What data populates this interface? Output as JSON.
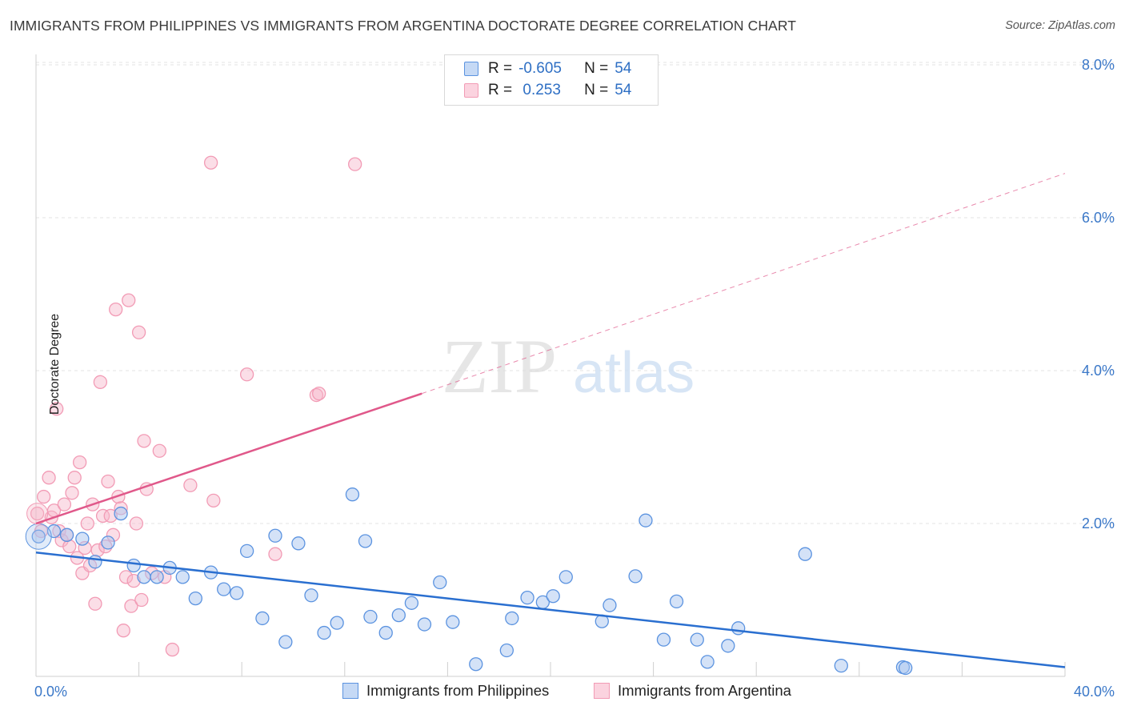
{
  "header": {
    "title": "IMMIGRANTS FROM PHILIPPINES VS IMMIGRANTS FROM ARGENTINA DOCTORATE DEGREE CORRELATION CHART",
    "source": "Source: ZipAtlas.com"
  },
  "watermark": {
    "part1": "ZIP",
    "part2": "atlas"
  },
  "legend": {
    "rows": [
      {
        "r_label": "R = ",
        "r_value": "-0.605",
        "n_label": "N = ",
        "n_value": "54"
      },
      {
        "r_label": "R = ",
        "r_value": " 0.253",
        "n_label": "N = ",
        "n_value": "54"
      }
    ]
  },
  "chart_data": {
    "type": "scatter",
    "title": "IMMIGRANTS FROM PHILIPPINES VS IMMIGRANTS FROM ARGENTINA DOCTORATE DEGREE CORRELATION CHART",
    "xlabel": "",
    "ylabel": "Doctorate Degree",
    "xlim": [
      0,
      40
    ],
    "ylim": [
      0,
      8.2
    ],
    "x_tick_labels": [
      "0.0%",
      "40.0%"
    ],
    "y_ticks": [
      2,
      4,
      6,
      8
    ],
    "y_tick_labels": [
      "2.0%",
      "4.0%",
      "6.0%",
      "8.0%"
    ],
    "grid": true,
    "legend_position": "bottom",
    "colors": {
      "philippines": "#5b93e0",
      "philippines_line": "#2a6fd0",
      "argentina": "#f29bb5",
      "argentina_line": "#e0588a",
      "tick_label": "#3b78c8"
    },
    "series": [
      {
        "name": "Immigrants from Philippines",
        "color": "#5b93e0",
        "trend": {
          "x": [
            0,
            40
          ],
          "y": [
            1.62,
            0.12
          ]
        },
        "points": [
          {
            "x": 0.1,
            "y": 1.83
          },
          {
            "x": 0.7,
            "y": 1.9
          },
          {
            "x": 1.2,
            "y": 1.85
          },
          {
            "x": 1.8,
            "y": 1.8
          },
          {
            "x": 2.3,
            "y": 1.5
          },
          {
            "x": 2.8,
            "y": 1.75
          },
          {
            "x": 3.3,
            "y": 2.13
          },
          {
            "x": 3.8,
            "y": 1.45
          },
          {
            "x": 4.2,
            "y": 1.3
          },
          {
            "x": 4.7,
            "y": 1.3
          },
          {
            "x": 5.2,
            "y": 1.42
          },
          {
            "x": 5.7,
            "y": 1.3
          },
          {
            "x": 6.2,
            "y": 1.02
          },
          {
            "x": 6.8,
            "y": 1.36
          },
          {
            "x": 7.3,
            "y": 1.14
          },
          {
            "x": 7.8,
            "y": 1.09
          },
          {
            "x": 8.2,
            "y": 1.64
          },
          {
            "x": 8.8,
            "y": 0.76
          },
          {
            "x": 9.3,
            "y": 1.84
          },
          {
            "x": 9.7,
            "y": 0.45
          },
          {
            "x": 10.2,
            "y": 1.74
          },
          {
            "x": 10.7,
            "y": 1.06
          },
          {
            "x": 11.2,
            "y": 0.57
          },
          {
            "x": 11.7,
            "y": 0.7
          },
          {
            "x": 12.3,
            "y": 2.38
          },
          {
            "x": 12.8,
            "y": 1.77
          },
          {
            "x": 13.0,
            "y": 0.78
          },
          {
            "x": 13.6,
            "y": 0.57
          },
          {
            "x": 14.1,
            "y": 0.8
          },
          {
            "x": 14.6,
            "y": 0.96
          },
          {
            "x": 15.1,
            "y": 0.68
          },
          {
            "x": 15.7,
            "y": 1.23
          },
          {
            "x": 16.2,
            "y": 0.71
          },
          {
            "x": 17.1,
            "y": 0.16
          },
          {
            "x": 18.3,
            "y": 0.34
          },
          {
            "x": 18.5,
            "y": 0.76
          },
          {
            "x": 19.1,
            "y": 1.03
          },
          {
            "x": 19.7,
            "y": 0.97
          },
          {
            "x": 20.1,
            "y": 1.05
          },
          {
            "x": 20.6,
            "y": 1.3
          },
          {
            "x": 22.0,
            "y": 0.72
          },
          {
            "x": 22.3,
            "y": 0.93
          },
          {
            "x": 23.3,
            "y": 1.31
          },
          {
            "x": 23.7,
            "y": 2.04
          },
          {
            "x": 24.4,
            "y": 0.48
          },
          {
            "x": 24.9,
            "y": 0.98
          },
          {
            "x": 25.7,
            "y": 0.48
          },
          {
            "x": 26.1,
            "y": 0.19
          },
          {
            "x": 26.9,
            "y": 0.4
          },
          {
            "x": 27.3,
            "y": 0.63
          },
          {
            "x": 29.9,
            "y": 1.6
          },
          {
            "x": 31.3,
            "y": 0.14
          },
          {
            "x": 33.7,
            "y": 0.12
          },
          {
            "x": 33.8,
            "y": 0.11
          }
        ]
      },
      {
        "name": "Immigrants from Argentina",
        "color": "#f29bb5",
        "trend": {
          "x": [
            0,
            15
          ],
          "y": [
            2.0,
            3.7
          ]
        },
        "trend_extension": {
          "x": [
            15,
            40
          ],
          "y": [
            3.7,
            6.58
          ]
        },
        "points": [
          {
            "x": 0.05,
            "y": 2.13
          },
          {
            "x": 0.2,
            "y": 1.9
          },
          {
            "x": 0.3,
            "y": 2.35
          },
          {
            "x": 0.5,
            "y": 2.6
          },
          {
            "x": 0.6,
            "y": 2.08
          },
          {
            "x": 0.7,
            "y": 2.17
          },
          {
            "x": 0.8,
            "y": 3.5
          },
          {
            "x": 0.9,
            "y": 1.9
          },
          {
            "x": 1.0,
            "y": 1.78
          },
          {
            "x": 1.1,
            "y": 2.25
          },
          {
            "x": 1.2,
            "y": 1.85
          },
          {
            "x": 1.3,
            "y": 1.7
          },
          {
            "x": 1.4,
            "y": 2.4
          },
          {
            "x": 1.5,
            "y": 2.6
          },
          {
            "x": 1.6,
            "y": 1.55
          },
          {
            "x": 1.7,
            "y": 2.8
          },
          {
            "x": 1.8,
            "y": 1.35
          },
          {
            "x": 1.9,
            "y": 1.68
          },
          {
            "x": 2.0,
            "y": 2.0
          },
          {
            "x": 2.1,
            "y": 1.45
          },
          {
            "x": 2.2,
            "y": 2.25
          },
          {
            "x": 2.3,
            "y": 0.95
          },
          {
            "x": 2.4,
            "y": 1.65
          },
          {
            "x": 2.5,
            "y": 3.85
          },
          {
            "x": 2.6,
            "y": 2.1
          },
          {
            "x": 2.7,
            "y": 1.7
          },
          {
            "x": 2.8,
            "y": 2.55
          },
          {
            "x": 2.9,
            "y": 2.1
          },
          {
            "x": 3.0,
            "y": 1.85
          },
          {
            "x": 3.1,
            "y": 4.8
          },
          {
            "x": 3.2,
            "y": 2.35
          },
          {
            "x": 3.3,
            "y": 2.2
          },
          {
            "x": 3.4,
            "y": 0.6
          },
          {
            "x": 3.5,
            "y": 1.3
          },
          {
            "x": 3.6,
            "y": 4.92
          },
          {
            "x": 3.7,
            "y": 0.92
          },
          {
            "x": 3.8,
            "y": 1.25
          },
          {
            "x": 3.9,
            "y": 2.0
          },
          {
            "x": 4.0,
            "y": 4.5
          },
          {
            "x": 4.1,
            "y": 1.0
          },
          {
            "x": 4.2,
            "y": 3.08
          },
          {
            "x": 4.3,
            "y": 2.45
          },
          {
            "x": 4.5,
            "y": 1.35
          },
          {
            "x": 4.8,
            "y": 2.95
          },
          {
            "x": 5.0,
            "y": 1.3
          },
          {
            "x": 5.3,
            "y": 0.35
          },
          {
            "x": 6.0,
            "y": 2.5
          },
          {
            "x": 6.8,
            "y": 6.72
          },
          {
            "x": 6.9,
            "y": 2.3
          },
          {
            "x": 8.2,
            "y": 3.95
          },
          {
            "x": 9.3,
            "y": 1.6
          },
          {
            "x": 10.9,
            "y": 3.68
          },
          {
            "x": 11.0,
            "y": 3.7
          },
          {
            "x": 12.4,
            "y": 6.7
          }
        ]
      }
    ]
  },
  "bottom_legend": {
    "items": [
      {
        "label": "Immigrants from Philippines"
      },
      {
        "label": "Immigrants from Argentina"
      }
    ]
  }
}
